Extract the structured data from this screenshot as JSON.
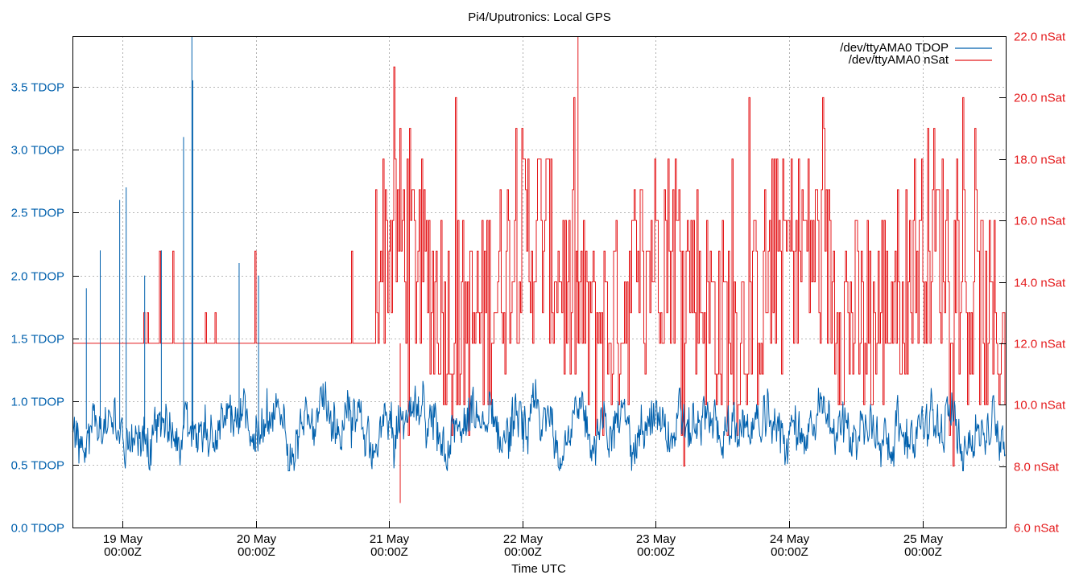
{
  "chart_data": {
    "type": "line",
    "title": "Pi4/Uputronics: Local GPS",
    "xlabel": "Time UTC",
    "x_tick_labels": [
      {
        "date": "19 May",
        "time": "00:00Z"
      },
      {
        "date": "20 May",
        "time": "00:00Z"
      },
      {
        "date": "21 May",
        "time": "00:00Z"
      },
      {
        "date": "22 May",
        "time": "00:00Z"
      },
      {
        "date": "23 May",
        "time": "00:00Z"
      },
      {
        "date": "24 May",
        "time": "00:00Z"
      },
      {
        "date": "25 May",
        "time": "00:00Z"
      }
    ],
    "xlim": [
      "2024-05-18 15:00",
      "2024-05-25 15:00"
    ],
    "y_left": {
      "unit": "TDOP",
      "ylim": [
        0,
        3.9
      ],
      "ticks": [
        "0.0 TDOP",
        "0.5 TDOP",
        "1.0 TDOP",
        "1.5 TDOP",
        "2.0 TDOP",
        "2.5 TDOP",
        "3.0 TDOP",
        "3.5 TDOP"
      ]
    },
    "y_right": {
      "unit": "nSat",
      "ylim": [
        6,
        22
      ],
      "ticks": [
        "6.0 nSat",
        "8.0 nSat",
        "10.0 nSat",
        "12.0 nSat",
        "14.0 nSat",
        "16.0 nSat",
        "18.0 nSat",
        "20.0 nSat",
        "22.0 nSat"
      ]
    },
    "grid": true,
    "legend_position": "top-right",
    "series": [
      {
        "name": "/dev/ttyAMA0 TDOP",
        "axis": "left",
        "color": "#0060ad",
        "baseline": 0.78,
        "noise_range": [
          0.45,
          1.25
        ],
        "peaks": [
          {
            "x": "2024-05-18 17:30",
            "y": 1.9
          },
          {
            "x": "2024-05-18 20:00",
            "y": 2.2
          },
          {
            "x": "2024-05-18 23:30",
            "y": 2.6
          },
          {
            "x": "2024-05-19 00:40",
            "y": 2.7
          },
          {
            "x": "2024-05-19 04:00",
            "y": 2.0
          },
          {
            "x": "2024-05-19 07:00",
            "y": 2.2
          },
          {
            "x": "2024-05-19 11:00",
            "y": 3.1
          },
          {
            "x": "2024-05-19 12:30",
            "y": 3.9
          },
          {
            "x": "2024-05-19 12:40",
            "y": 3.55
          },
          {
            "x": "2024-05-19 21:00",
            "y": 2.1
          },
          {
            "x": "2024-05-20 00:30",
            "y": 2.0
          }
        ]
      },
      {
        "name": "/dev/ttyAMA0 nSat",
        "axis": "right",
        "color": "#e41a1c",
        "phase1_until": "2024-05-20 21:30",
        "phase1_level": 12,
        "phase1_spike_levels": [
          13,
          15,
          17
        ],
        "phase2_range": [
          8,
          21
        ],
        "phase2_dominant_range": [
          11,
          18
        ],
        "min": 6.8,
        "max": 22
      }
    ]
  }
}
